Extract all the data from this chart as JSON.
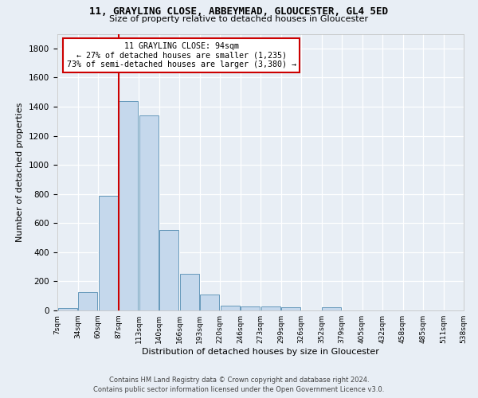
{
  "title1": "11, GRAYLING CLOSE, ABBEYMEAD, GLOUCESTER, GL4 5ED",
  "title2": "Size of property relative to detached houses in Gloucester",
  "xlabel": "Distribution of detached houses by size in Gloucester",
  "ylabel": "Number of detached properties",
  "bar_values": [
    15,
    125,
    790,
    1440,
    1340,
    550,
    250,
    110,
    35,
    30,
    25,
    20,
    0,
    20,
    0,
    0,
    0,
    0,
    0,
    0
  ],
  "bin_labels": [
    "7sqm",
    "34sqm",
    "60sqm",
    "87sqm",
    "113sqm",
    "140sqm",
    "166sqm",
    "193sqm",
    "220sqm",
    "246sqm",
    "273sqm",
    "299sqm",
    "326sqm",
    "352sqm",
    "379sqm",
    "405sqm",
    "432sqm",
    "458sqm",
    "485sqm",
    "511sqm",
    "538sqm"
  ],
  "bar_color": "#c5d8ec",
  "bar_edge_color": "#6699bb",
  "property_label": "11 GRAYLING CLOSE: 94sqm",
  "annotation_line1": "← 27% of detached houses are smaller (1,235)",
  "annotation_line2": "73% of semi-detached houses are larger (3,380) →",
  "vline_color": "#cc0000",
  "footer1": "Contains HM Land Registry data © Crown copyright and database right 2024.",
  "footer2": "Contains public sector information licensed under the Open Government Licence v3.0.",
  "ylim": [
    0,
    1900
  ],
  "yticks": [
    0,
    200,
    400,
    600,
    800,
    1000,
    1200,
    1400,
    1600,
    1800
  ],
  "background_color": "#e8eef5",
  "grid_color": "#ffffff",
  "vline_bin_index": 3
}
